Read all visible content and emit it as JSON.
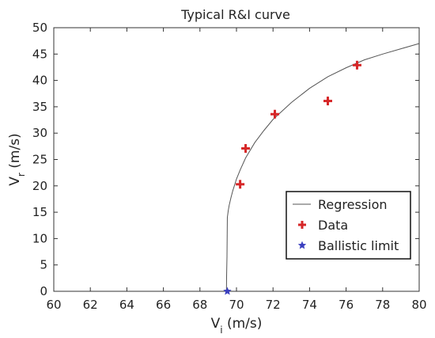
{
  "chart_data": {
    "type": "scatter",
    "title": "Typical R&I curve",
    "xlabel": {
      "main": "V",
      "sub": "i",
      "unit": " (m/s)"
    },
    "ylabel": {
      "main": "V",
      "sub": "r",
      "unit": " (m/s)"
    },
    "xlim": [
      60,
      80
    ],
    "ylim": [
      0,
      50
    ],
    "xticks": [
      60,
      62,
      64,
      66,
      68,
      70,
      72,
      74,
      76,
      78,
      80
    ],
    "yticks": [
      0,
      5,
      10,
      15,
      20,
      25,
      30,
      35,
      40,
      45,
      50
    ],
    "grid": false,
    "legend_position": "bottom-right",
    "colors": {
      "regression": "#555555",
      "data": "#d62728",
      "ballistic": "#3a3fbf"
    },
    "series": [
      {
        "name": "Regression",
        "kind": "line",
        "x": [
          69.45,
          69.46,
          69.48,
          69.5,
          69.55,
          69.6,
          69.7,
          69.8,
          70.0,
          70.2,
          70.5,
          71.0,
          71.5,
          72.0,
          73.0,
          74.0,
          75.0,
          76.0,
          77.0,
          78.0,
          79.0,
          80.0
        ],
        "y": [
          0,
          3.0,
          6.5,
          14.0,
          15.3,
          16.3,
          17.8,
          19.1,
          21.3,
          23.0,
          25.3,
          28.2,
          30.5,
          32.6,
          35.8,
          38.5,
          40.7,
          42.4,
          43.9,
          45.0,
          46.0,
          47.0
        ]
      },
      {
        "name": "Data",
        "kind": "marker",
        "marker": "plus",
        "x": [
          70.2,
          70.5,
          72.1,
          75.0,
          76.6
        ],
        "y": [
          20.3,
          27.1,
          33.6,
          36.1,
          42.9
        ]
      },
      {
        "name": "Ballistic limit",
        "kind": "marker",
        "marker": "star",
        "x": [
          69.5
        ],
        "y": [
          0
        ]
      }
    ]
  }
}
